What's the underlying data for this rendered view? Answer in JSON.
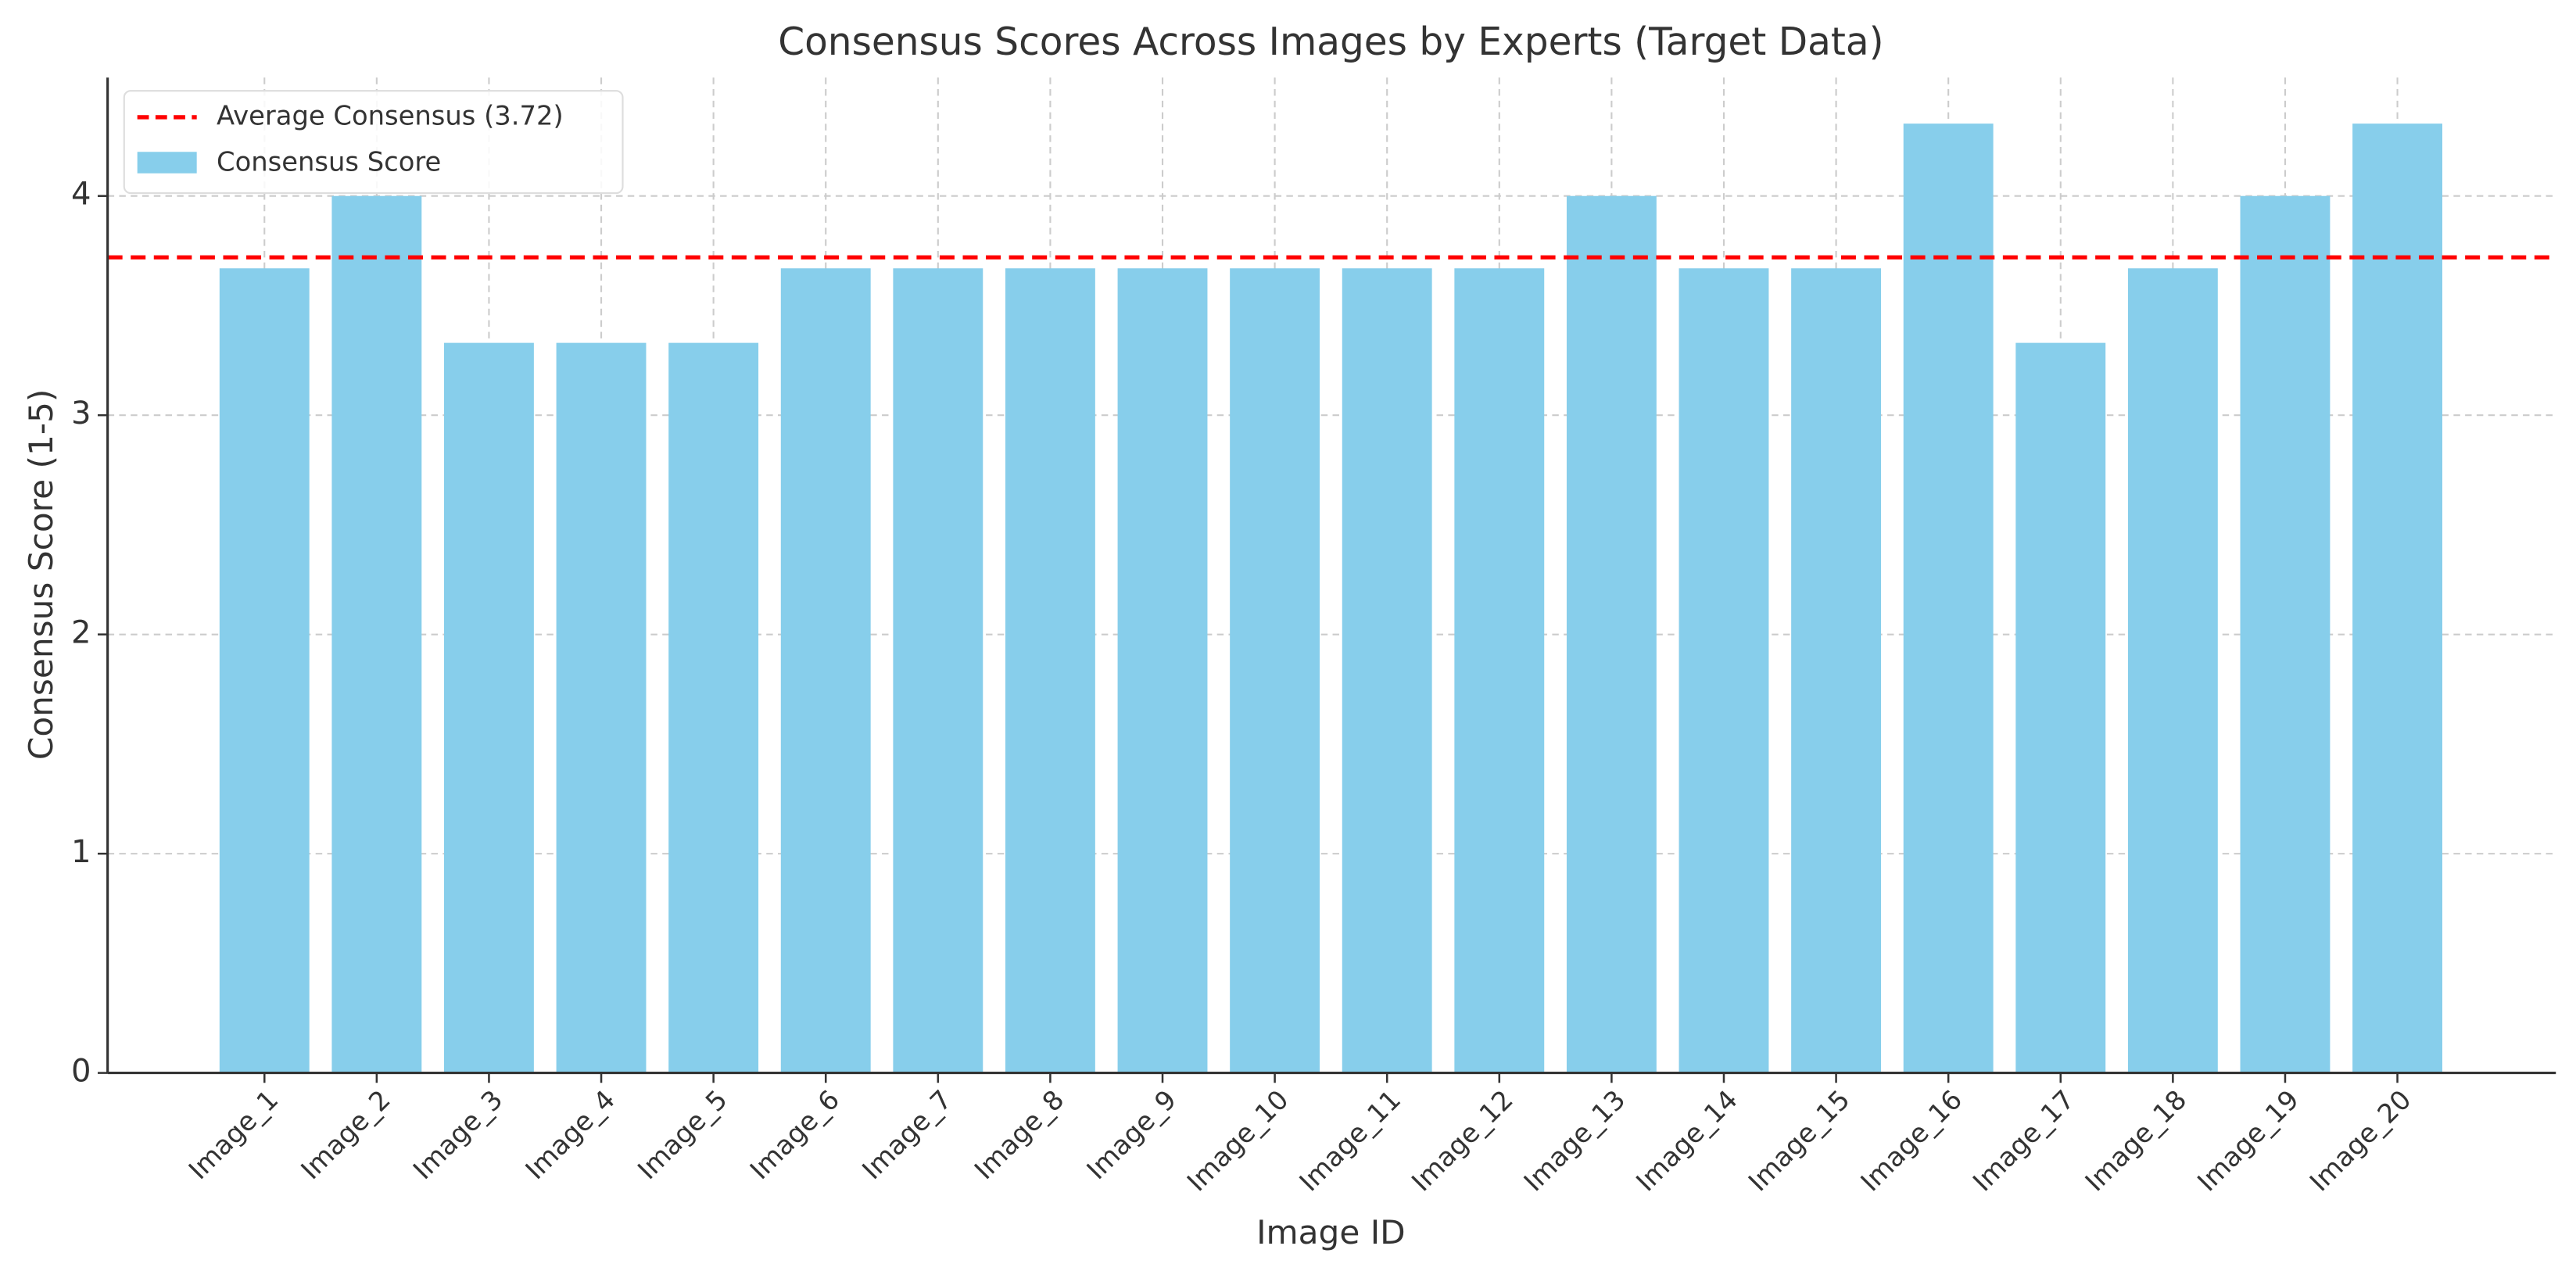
{
  "chart_data": {
    "type": "bar",
    "title": "Consensus Scores Across Images by Experts (Target Data)",
    "x_label": "Image ID",
    "y_label": "Consensus Score (1-5)",
    "categories": [
      "Image_1",
      "Image_2",
      "Image_3",
      "Image_4",
      "Image_5",
      "Image_6",
      "Image_7",
      "Image_8",
      "Image_9",
      "Image_10",
      "Image_11",
      "Image_12",
      "Image_13",
      "Image_14",
      "Image_15",
      "Image_16",
      "Image_17",
      "Image_18",
      "Image_19",
      "Image_20"
    ],
    "series": [
      {
        "name": "Consensus Score",
        "color": "#87ceeb",
        "values": [
          3.67,
          4.0,
          3.33,
          3.33,
          3.33,
          3.67,
          3.67,
          3.67,
          3.67,
          3.67,
          3.67,
          3.67,
          4.0,
          3.67,
          3.67,
          4.33,
          3.33,
          3.67,
          4.0,
          4.33
        ]
      }
    ],
    "reference_line": {
      "name": "Average Consensus (3.72)",
      "value": 3.72,
      "color": "#ff0000",
      "style": "dashed"
    },
    "ylim": [
      0,
      4.54
    ],
    "yticks": [
      0,
      1,
      2,
      3,
      4
    ],
    "grid": true,
    "legend": "upper left"
  }
}
